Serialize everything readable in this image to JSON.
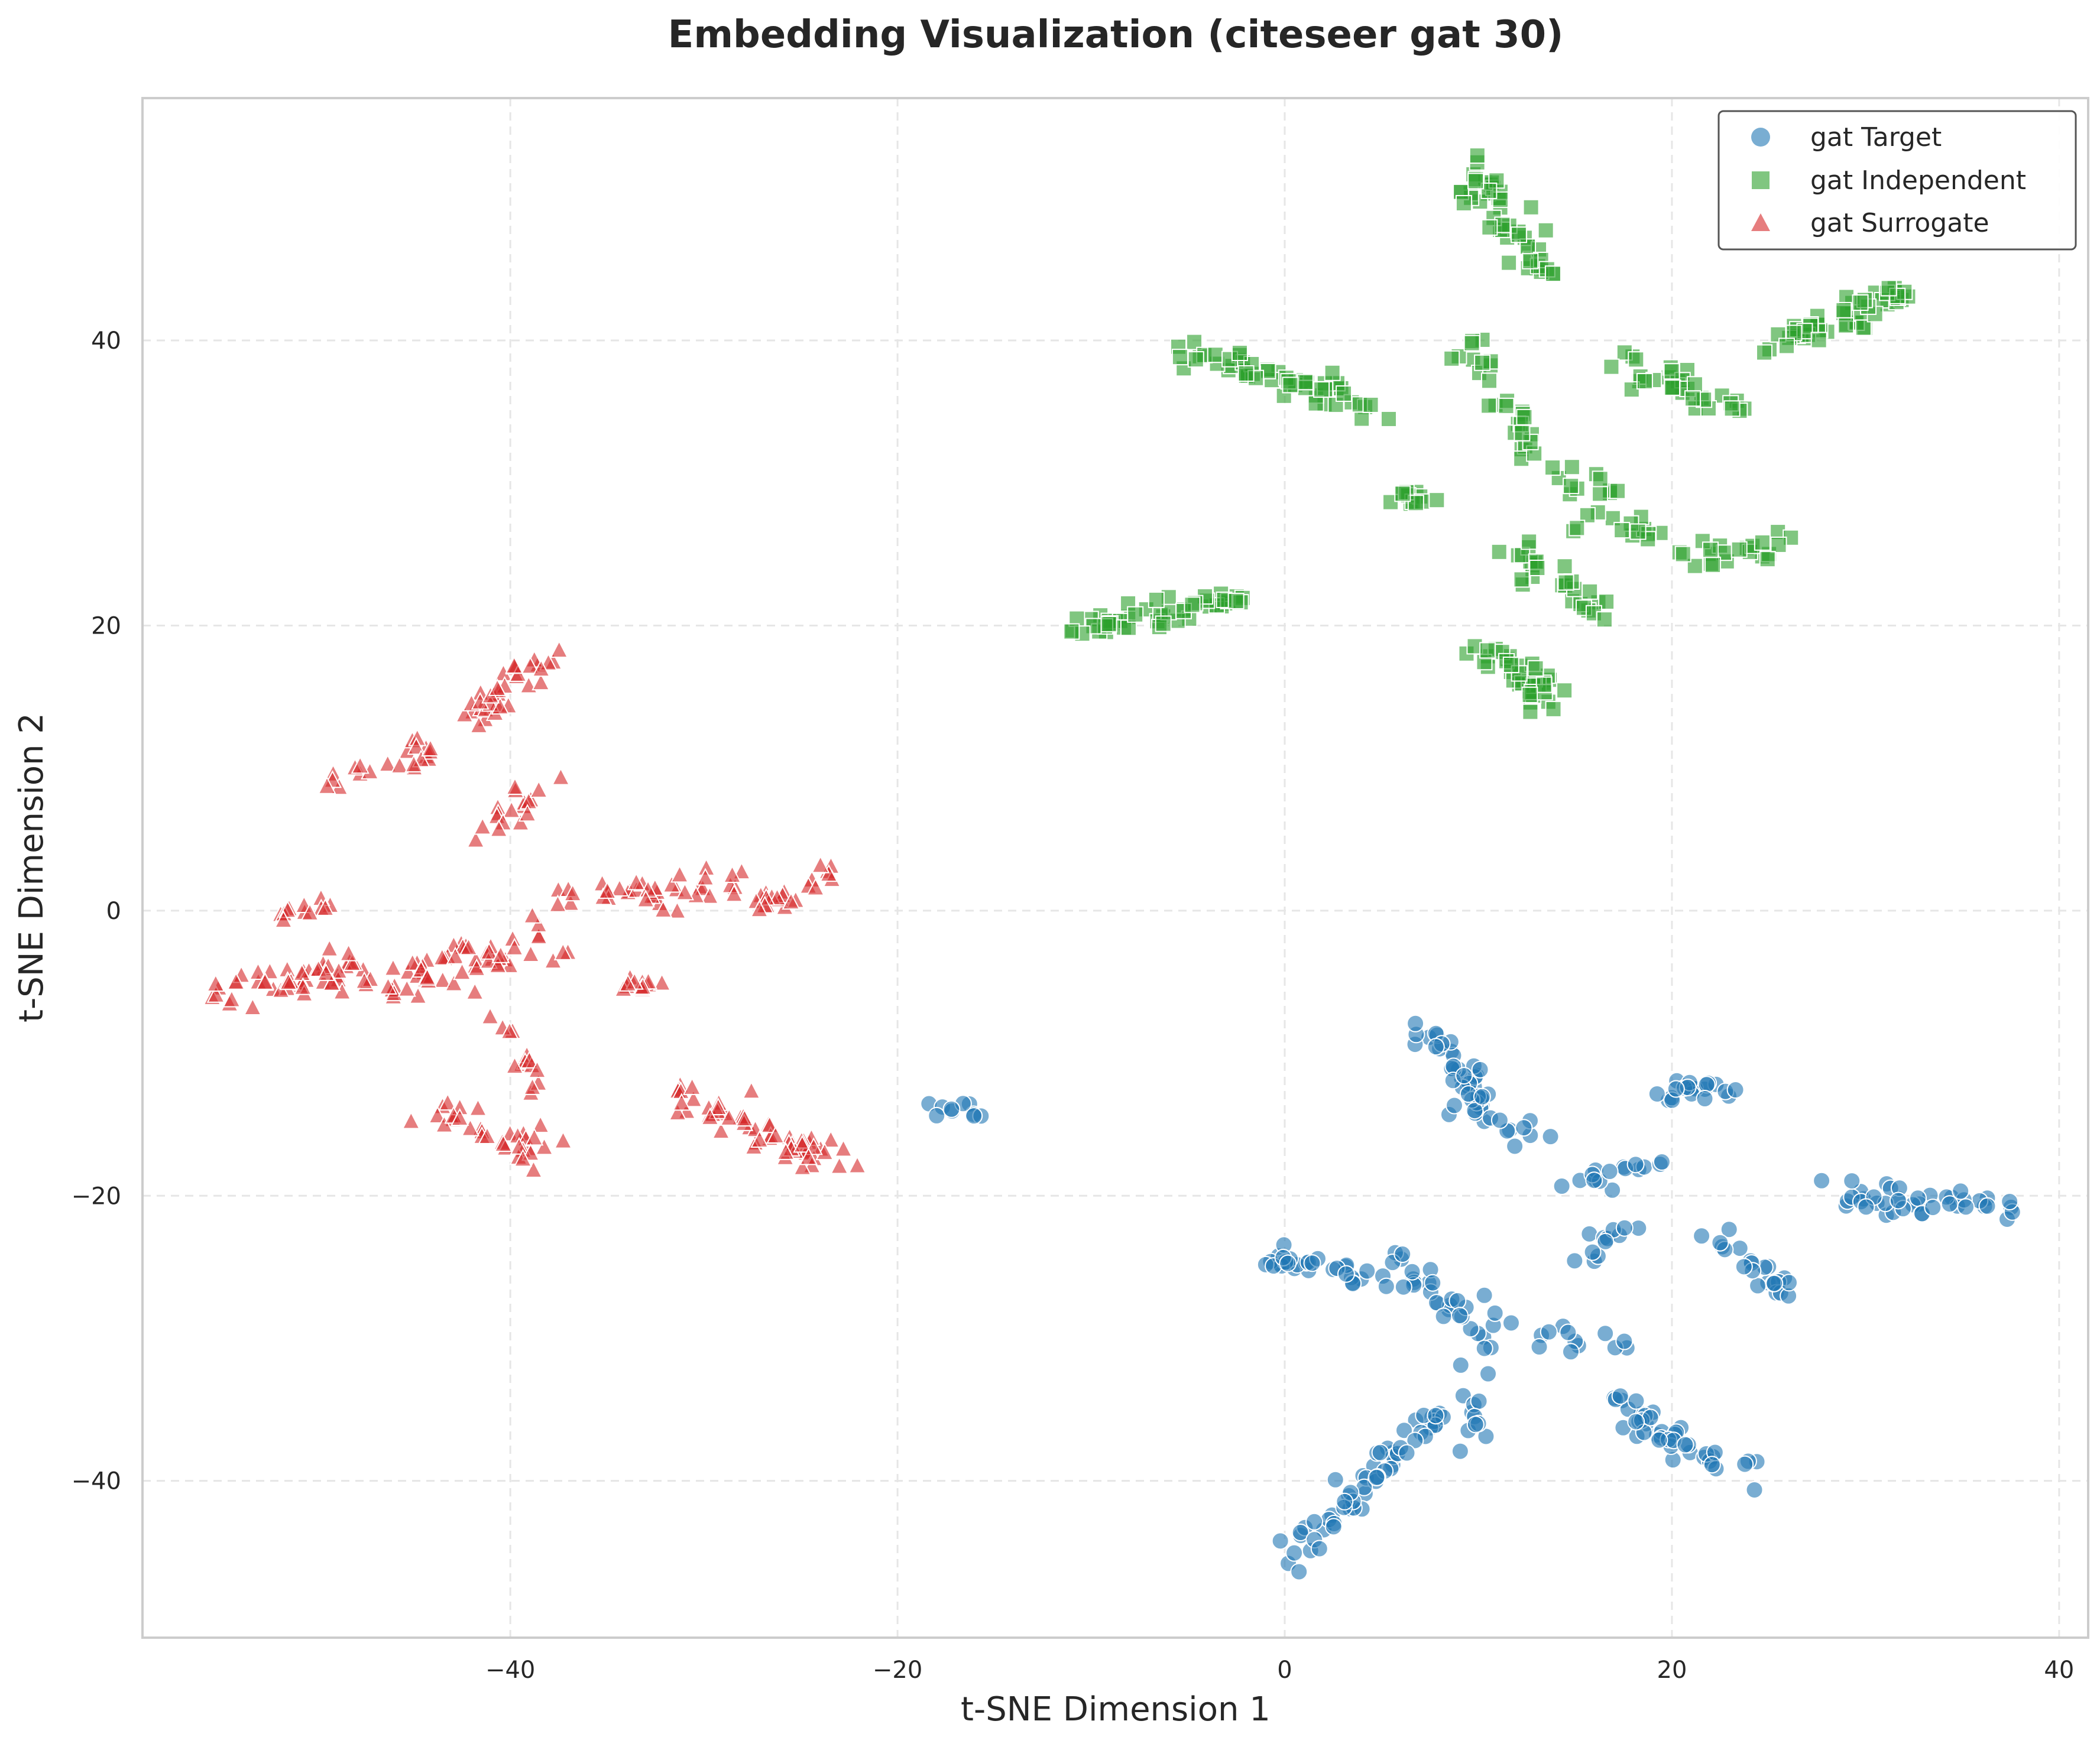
{
  "chart_data": {
    "type": "scatter",
    "title": "Embedding Visualization (citeseer gat 30)",
    "xlabel": "t-SNE Dimension 1",
    "ylabel": "t-SNE Dimension 2",
    "xlim": [
      -59,
      41.5
    ],
    "ylim": [
      -51,
      57
    ],
    "xticks": [
      -40,
      -20,
      0,
      20,
      40
    ],
    "yticks": [
      -40,
      -20,
      0,
      20,
      40
    ],
    "xtick_labels": [
      "−40",
      "−20",
      "0",
      "20",
      "40"
    ],
    "ytick_labels": [
      "−40",
      "−20",
      "0",
      "20",
      "40"
    ],
    "grid": true,
    "legend_position": "top-right",
    "series": [
      {
        "name": "gat Target",
        "marker": "circle",
        "color": "#1f77b4",
        "clusters": [
          {
            "from": [
              -17.5,
              -13.8
            ],
            "to": [
              -15.8,
              -14.2
            ],
            "n": 10,
            "spread": 0.6
          },
          {
            "from": [
              -1.5,
              -24.2
            ],
            "to": [
              5.5,
              -26.0
            ],
            "n": 30,
            "spread": 0.8
          },
          {
            "from": [
              7.0,
              -8.0
            ],
            "to": [
              11.5,
              -15.0
            ],
            "n": 36,
            "spread": 1.0
          },
          {
            "from": [
              8.0,
              -12.0
            ],
            "to": [
              13.5,
              -16.5
            ],
            "n": 14,
            "spread": 0.8
          },
          {
            "from": [
              10.5,
              -27.5
            ],
            "to": [
              9.5,
              -37.5
            ],
            "n": 20,
            "spread": 1.0
          },
          {
            "from": [
              5.0,
              -23.5
            ],
            "to": [
              9.0,
              -28.5
            ],
            "n": 24,
            "spread": 0.9
          },
          {
            "from": [
              14.5,
              -19.5
            ],
            "to": [
              19.5,
              -17.0
            ],
            "n": 16,
            "spread": 0.7
          },
          {
            "from": [
              19.5,
              -12.5
            ],
            "to": [
              23.0,
              -13.0
            ],
            "n": 20,
            "spread": 0.8
          },
          {
            "from": [
              15.0,
              -25.0
            ],
            "to": [
              17.5,
              -22.5
            ],
            "n": 12,
            "spread": 0.7
          },
          {
            "from": [
              13.0,
              -30.0
            ],
            "to": [
              18.0,
              -31.0
            ],
            "n": 12,
            "spread": 0.8
          },
          {
            "from": [
              17.0,
              -34.5
            ],
            "to": [
              24.0,
              -39.5
            ],
            "n": 42,
            "spread": 1.0
          },
          {
            "from": [
              22.0,
              -22.5
            ],
            "to": [
              26.0,
              -27.0
            ],
            "n": 22,
            "spread": 0.9
          },
          {
            "from": [
              28.0,
              -20.0
            ],
            "to": [
              37.0,
              -21.0
            ],
            "n": 42,
            "spread": 1.0
          },
          {
            "from": [
              8.5,
              -35.5
            ],
            "to": [
              6.0,
              -36.5
            ],
            "n": 14,
            "spread": 0.8
          },
          {
            "from": [
              6.5,
              -37.0
            ],
            "to": [
              0.5,
              -45.5
            ],
            "n": 44,
            "spread": 1.0
          }
        ]
      },
      {
        "name": "gat Independent",
        "marker": "square",
        "color": "#2ca02c",
        "clusters": [
          {
            "from": [
              -12.0,
              19.5
            ],
            "to": [
              -2.0,
              22.0
            ],
            "n": 50,
            "spread": 1.0
          },
          {
            "from": [
              -5.5,
              39.5
            ],
            "to": [
              5.0,
              35.0
            ],
            "n": 56,
            "spread": 1.0
          },
          {
            "from": [
              5.5,
              29.5
            ],
            "to": [
              7.5,
              28.5
            ],
            "n": 12,
            "spread": 0.7
          },
          {
            "from": [
              10.0,
              52.0
            ],
            "to": [
              13.5,
              44.0
            ],
            "n": 48,
            "spread": 1.0
          },
          {
            "from": [
              9.5,
              40.0
            ],
            "to": [
              12.5,
              31.5
            ],
            "n": 28,
            "spread": 0.9
          },
          {
            "from": [
              10.0,
              18.5
            ],
            "to": [
              14.0,
              14.5
            ],
            "n": 40,
            "spread": 1.0
          },
          {
            "from": [
              11.5,
              26.0
            ],
            "to": [
              16.5,
              20.5
            ],
            "n": 28,
            "spread": 1.0
          },
          {
            "from": [
              13.5,
              30.5
            ],
            "to": [
              18.0,
              29.0
            ],
            "n": 12,
            "spread": 0.8
          },
          {
            "from": [
              15.5,
              27.5
            ],
            "to": [
              19.5,
              26.0
            ],
            "n": 14,
            "spread": 0.8
          },
          {
            "from": [
              17.0,
              38.5
            ],
            "to": [
              23.5,
              35.0
            ],
            "n": 32,
            "spread": 1.0
          },
          {
            "from": [
              21.0,
              25.0
            ],
            "to": [
              26.0,
              26.0
            ],
            "n": 22,
            "spread": 0.9
          },
          {
            "from": [
              25.5,
              40.0
            ],
            "to": [
              32.5,
              43.5
            ],
            "n": 50,
            "spread": 1.0
          }
        ]
      },
      {
        "name": "gat Surrogate",
        "marker": "triangle",
        "color": "#d62728",
        "clusters": [
          {
            "from": [
              -55.0,
              -6.0
            ],
            "to": [
              -48.0,
              -4.0
            ],
            "n": 50,
            "spread": 1.2
          },
          {
            "from": [
              -52.0,
              0.0
            ],
            "to": [
              -49.0,
              0.5
            ],
            "n": 12,
            "spread": 0.6
          },
          {
            "from": [
              -49.5,
              8.5
            ],
            "to": [
              -44.0,
              11.5
            ],
            "n": 22,
            "spread": 1.0
          },
          {
            "from": [
              -42.5,
              13.5
            ],
            "to": [
              -37.5,
              18.5
            ],
            "n": 36,
            "spread": 1.0
          },
          {
            "from": [
              -47.0,
              -5.5
            ],
            "to": [
              -38.0,
              -2.0
            ],
            "n": 60,
            "spread": 1.5
          },
          {
            "from": [
              -38.0,
              0.5
            ],
            "to": [
              -28.0,
              2.0
            ],
            "n": 40,
            "spread": 1.3
          },
          {
            "from": [
              -27.0,
              0.5
            ],
            "to": [
              -23.5,
              2.5
            ],
            "n": 24,
            "spread": 0.8
          },
          {
            "from": [
              -34.5,
              -5.5
            ],
            "to": [
              -32.0,
              -5.0
            ],
            "n": 12,
            "spread": 0.6
          },
          {
            "from": [
              -44.0,
              -14.0
            ],
            "to": [
              -38.0,
              -17.0
            ],
            "n": 34,
            "spread": 1.0
          },
          {
            "from": [
              -32.0,
              -12.5
            ],
            "to": [
              -23.0,
              -18.0
            ],
            "n": 60,
            "spread": 1.0
          },
          {
            "from": [
              -41.5,
              5.0
            ],
            "to": [
              -38.0,
              9.0
            ],
            "n": 18,
            "spread": 1.0
          },
          {
            "from": [
              -40.5,
              -8.0
            ],
            "to": [
              -38.5,
              -13.5
            ],
            "n": 14,
            "spread": 0.9
          }
        ]
      }
    ]
  }
}
